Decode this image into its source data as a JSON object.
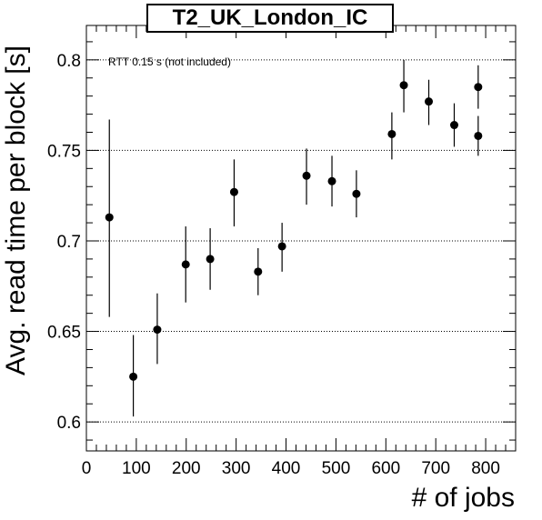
{
  "chart_data": {
    "type": "scatter",
    "title": "T2_UK_London_IC",
    "xlabel": "# of jobs",
    "ylabel": "Avg. read time per block [s]",
    "annotation": "RTT 0.15 s (not included)",
    "xlim": [
      0,
      860
    ],
    "ylim": [
      0.584,
      0.819
    ],
    "xticks": [
      0,
      100,
      200,
      300,
      400,
      500,
      600,
      700,
      800
    ],
    "xtick_labels": [
      "0",
      "100",
      "200",
      "300",
      "400",
      "500",
      "600",
      "700",
      "800"
    ],
    "yticks": [
      0.6,
      0.65,
      0.7,
      0.75,
      0.8
    ],
    "ytick_labels": [
      "0.6",
      "0.65",
      "0.7",
      "0.75",
      "0.8"
    ],
    "grid": "horizontal-dotted",
    "points": [
      {
        "x": 46,
        "y": 0.713,
        "err_low": 0.658,
        "err_high": 0.767
      },
      {
        "x": 94,
        "y": 0.625,
        "err_low": 0.603,
        "err_high": 0.648
      },
      {
        "x": 142,
        "y": 0.651,
        "err_low": 0.632,
        "err_high": 0.671
      },
      {
        "x": 199,
        "y": 0.687,
        "err_low": 0.666,
        "err_high": 0.708
      },
      {
        "x": 248,
        "y": 0.69,
        "err_low": 0.673,
        "err_high": 0.707
      },
      {
        "x": 296,
        "y": 0.727,
        "err_low": 0.708,
        "err_high": 0.745
      },
      {
        "x": 344,
        "y": 0.683,
        "err_low": 0.67,
        "err_high": 0.696
      },
      {
        "x": 392,
        "y": 0.697,
        "err_low": 0.683,
        "err_high": 0.71
      },
      {
        "x": 441,
        "y": 0.736,
        "err_low": 0.72,
        "err_high": 0.751
      },
      {
        "x": 492,
        "y": 0.733,
        "err_low": 0.719,
        "err_high": 0.747
      },
      {
        "x": 541,
        "y": 0.726,
        "err_low": 0.713,
        "err_high": 0.739
      },
      {
        "x": 612,
        "y": 0.759,
        "err_low": 0.745,
        "err_high": 0.771
      },
      {
        "x": 636,
        "y": 0.786,
        "err_low": 0.771,
        "err_high": 0.8
      },
      {
        "x": 686,
        "y": 0.777,
        "err_low": 0.764,
        "err_high": 0.789
      },
      {
        "x": 737,
        "y": 0.764,
        "err_low": 0.752,
        "err_high": 0.776
      },
      {
        "x": 785,
        "y": 0.785,
        "err_low": 0.773,
        "err_high": 0.797
      },
      {
        "x": 785,
        "y": 0.758,
        "err_low": 0.747,
        "err_high": 0.769
      }
    ]
  }
}
